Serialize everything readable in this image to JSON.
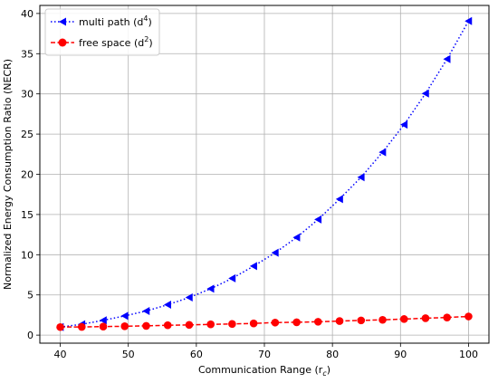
{
  "chart_data": {
    "type": "line",
    "xlabel": "Communication Range (r",
    "xlabel_sub": "c",
    "xlabel_close": ")",
    "ylabel": "Normalized Energy Consumption Ratio (NECR)",
    "xlim": [
      37.0,
      103.0
    ],
    "ylim": [
      -1.0,
      41.0
    ],
    "xticks": [
      40,
      50,
      60,
      70,
      80,
      90,
      100
    ],
    "yticks": [
      0,
      5,
      10,
      15,
      20,
      25,
      30,
      35,
      40
    ],
    "grid": true,
    "legend_position": "top-left",
    "x": [
      40.0,
      43.16,
      46.32,
      49.47,
      52.63,
      55.79,
      58.95,
      62.11,
      65.26,
      68.42,
      71.58,
      74.74,
      77.89,
      81.05,
      84.21,
      87.37,
      90.53,
      93.68,
      96.84,
      100.0
    ],
    "series": [
      {
        "name": "multi path (d",
        "name_sup": "4",
        "name_close": ")",
        "color": "#0000ff",
        "line_style": "dotted",
        "marker": "triangle-left",
        "values": [
          1.0,
          1.35,
          1.84,
          2.39,
          3.0,
          3.78,
          4.68,
          5.77,
          7.06,
          8.58,
          10.24,
          12.15,
          14.38,
          16.92,
          19.64,
          22.75,
          26.18,
          30.05,
          34.33,
          39.06
        ]
      },
      {
        "name": "free space (d",
        "name_sup": "2",
        "name_close": ")",
        "color": "#ff0000",
        "line_style": "dashed",
        "marker": "circle",
        "values": [
          1.0,
          1.02,
          1.06,
          1.1,
          1.15,
          1.23,
          1.27,
          1.34,
          1.39,
          1.46,
          1.56,
          1.6,
          1.66,
          1.75,
          1.83,
          1.9,
          2.0,
          2.1,
          2.19,
          2.32
        ]
      }
    ]
  }
}
